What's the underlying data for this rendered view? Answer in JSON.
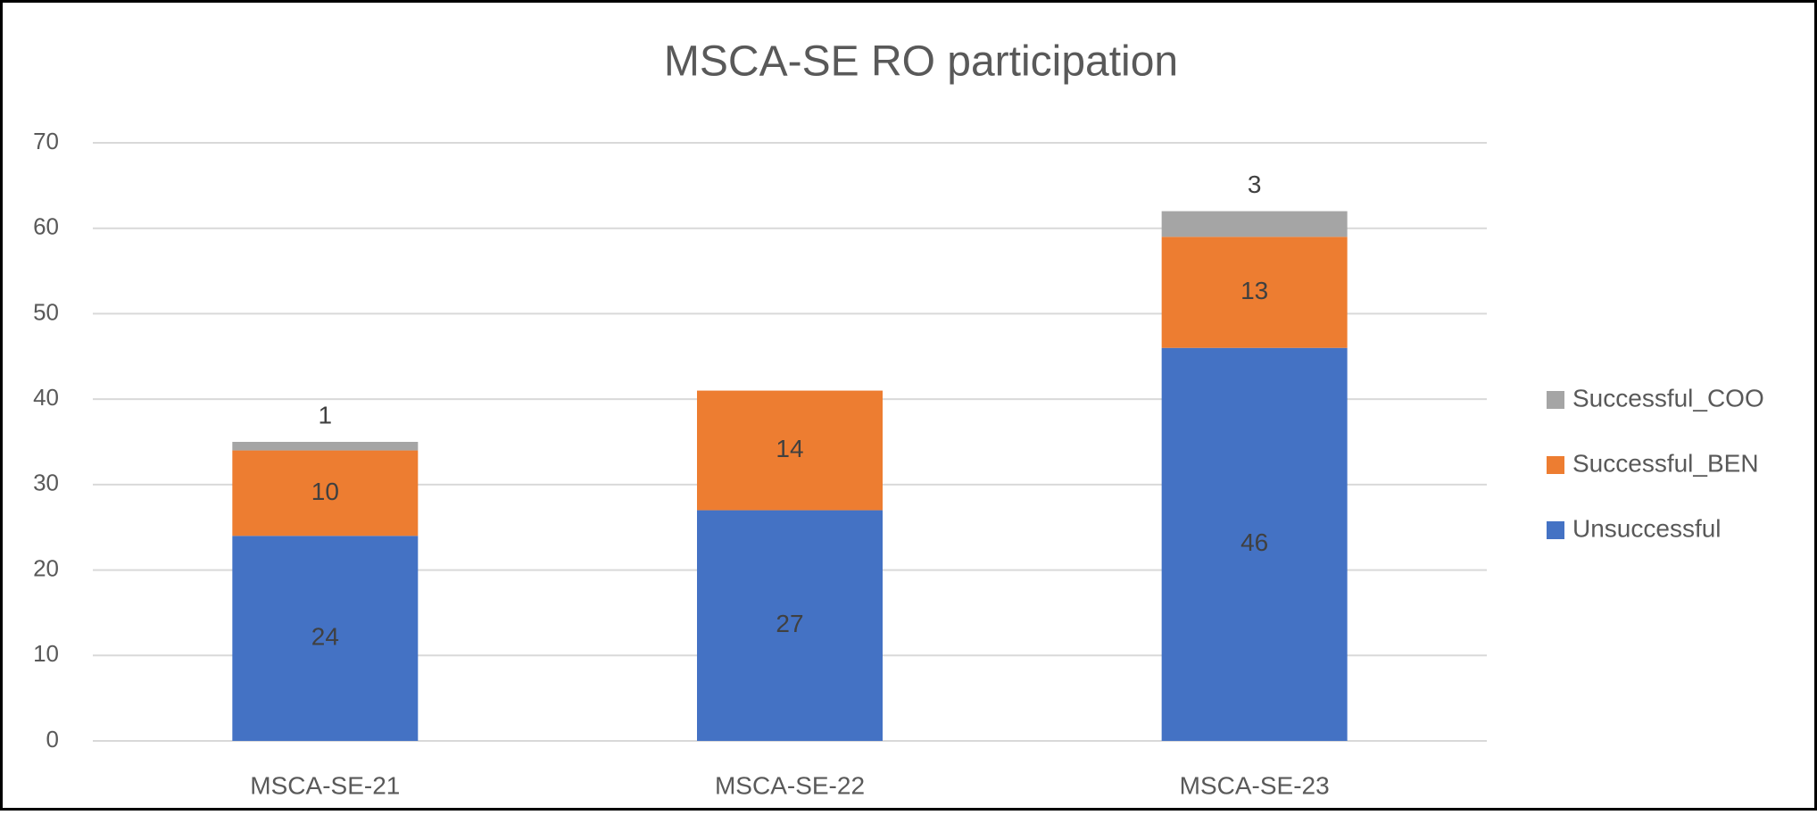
{
  "chart_data": {
    "type": "stacked_bar",
    "title": "MSCA-SE RO participation",
    "categories": [
      "MSCA-SE-21",
      "MSCA-SE-22",
      "MSCA-SE-23"
    ],
    "series": [
      {
        "name": "Unsuccessful",
        "color": "#4472c4",
        "values": [
          24,
          27,
          46
        ]
      },
      {
        "name": "Successful_BEN",
        "color": "#ed7d31",
        "values": [
          10,
          14,
          13
        ]
      },
      {
        "name": "Successful_COO",
        "color": "#a5a5a5",
        "values": [
          1,
          null,
          3
        ]
      }
    ],
    "ylim": [
      0,
      70
    ],
    "yticks": [
      0,
      10,
      20,
      30,
      40,
      50,
      60,
      70
    ],
    "grid": true,
    "legend": "right"
  }
}
